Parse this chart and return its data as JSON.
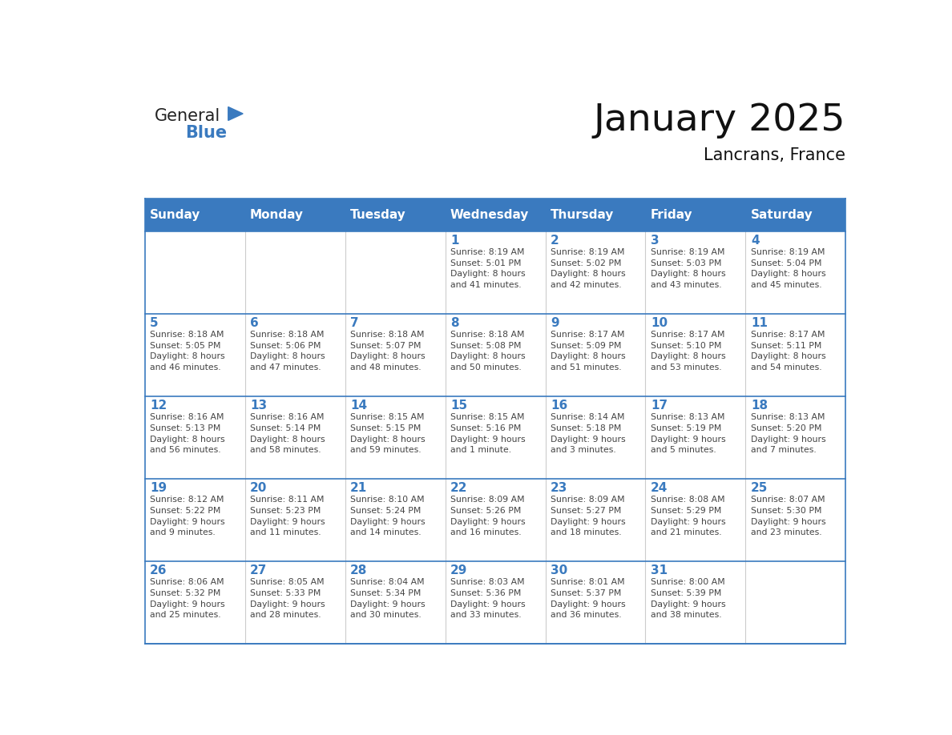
{
  "title": "January 2025",
  "subtitle": "Lancrans, France",
  "header_bg_color": "#3a7abf",
  "header_text_color": "#ffffff",
  "cell_border_color": "#3a7abf",
  "day_number_color": "#3a7abf",
  "text_color": "#444444",
  "days_of_week": [
    "Sunday",
    "Monday",
    "Tuesday",
    "Wednesday",
    "Thursday",
    "Friday",
    "Saturday"
  ],
  "calendar": [
    [
      {
        "day": "",
        "info": ""
      },
      {
        "day": "",
        "info": ""
      },
      {
        "day": "",
        "info": ""
      },
      {
        "day": "1",
        "info": "Sunrise: 8:19 AM\nSunset: 5:01 PM\nDaylight: 8 hours\nand 41 minutes."
      },
      {
        "day": "2",
        "info": "Sunrise: 8:19 AM\nSunset: 5:02 PM\nDaylight: 8 hours\nand 42 minutes."
      },
      {
        "day": "3",
        "info": "Sunrise: 8:19 AM\nSunset: 5:03 PM\nDaylight: 8 hours\nand 43 minutes."
      },
      {
        "day": "4",
        "info": "Sunrise: 8:19 AM\nSunset: 5:04 PM\nDaylight: 8 hours\nand 45 minutes."
      }
    ],
    [
      {
        "day": "5",
        "info": "Sunrise: 8:18 AM\nSunset: 5:05 PM\nDaylight: 8 hours\nand 46 minutes."
      },
      {
        "day": "6",
        "info": "Sunrise: 8:18 AM\nSunset: 5:06 PM\nDaylight: 8 hours\nand 47 minutes."
      },
      {
        "day": "7",
        "info": "Sunrise: 8:18 AM\nSunset: 5:07 PM\nDaylight: 8 hours\nand 48 minutes."
      },
      {
        "day": "8",
        "info": "Sunrise: 8:18 AM\nSunset: 5:08 PM\nDaylight: 8 hours\nand 50 minutes."
      },
      {
        "day": "9",
        "info": "Sunrise: 8:17 AM\nSunset: 5:09 PM\nDaylight: 8 hours\nand 51 minutes."
      },
      {
        "day": "10",
        "info": "Sunrise: 8:17 AM\nSunset: 5:10 PM\nDaylight: 8 hours\nand 53 minutes."
      },
      {
        "day": "11",
        "info": "Sunrise: 8:17 AM\nSunset: 5:11 PM\nDaylight: 8 hours\nand 54 minutes."
      }
    ],
    [
      {
        "day": "12",
        "info": "Sunrise: 8:16 AM\nSunset: 5:13 PM\nDaylight: 8 hours\nand 56 minutes."
      },
      {
        "day": "13",
        "info": "Sunrise: 8:16 AM\nSunset: 5:14 PM\nDaylight: 8 hours\nand 58 minutes."
      },
      {
        "day": "14",
        "info": "Sunrise: 8:15 AM\nSunset: 5:15 PM\nDaylight: 8 hours\nand 59 minutes."
      },
      {
        "day": "15",
        "info": "Sunrise: 8:15 AM\nSunset: 5:16 PM\nDaylight: 9 hours\nand 1 minute."
      },
      {
        "day": "16",
        "info": "Sunrise: 8:14 AM\nSunset: 5:18 PM\nDaylight: 9 hours\nand 3 minutes."
      },
      {
        "day": "17",
        "info": "Sunrise: 8:13 AM\nSunset: 5:19 PM\nDaylight: 9 hours\nand 5 minutes."
      },
      {
        "day": "18",
        "info": "Sunrise: 8:13 AM\nSunset: 5:20 PM\nDaylight: 9 hours\nand 7 minutes."
      }
    ],
    [
      {
        "day": "19",
        "info": "Sunrise: 8:12 AM\nSunset: 5:22 PM\nDaylight: 9 hours\nand 9 minutes."
      },
      {
        "day": "20",
        "info": "Sunrise: 8:11 AM\nSunset: 5:23 PM\nDaylight: 9 hours\nand 11 minutes."
      },
      {
        "day": "21",
        "info": "Sunrise: 8:10 AM\nSunset: 5:24 PM\nDaylight: 9 hours\nand 14 minutes."
      },
      {
        "day": "22",
        "info": "Sunrise: 8:09 AM\nSunset: 5:26 PM\nDaylight: 9 hours\nand 16 minutes."
      },
      {
        "day": "23",
        "info": "Sunrise: 8:09 AM\nSunset: 5:27 PM\nDaylight: 9 hours\nand 18 minutes."
      },
      {
        "day": "24",
        "info": "Sunrise: 8:08 AM\nSunset: 5:29 PM\nDaylight: 9 hours\nand 21 minutes."
      },
      {
        "day": "25",
        "info": "Sunrise: 8:07 AM\nSunset: 5:30 PM\nDaylight: 9 hours\nand 23 minutes."
      }
    ],
    [
      {
        "day": "26",
        "info": "Sunrise: 8:06 AM\nSunset: 5:32 PM\nDaylight: 9 hours\nand 25 minutes."
      },
      {
        "day": "27",
        "info": "Sunrise: 8:05 AM\nSunset: 5:33 PM\nDaylight: 9 hours\nand 28 minutes."
      },
      {
        "day": "28",
        "info": "Sunrise: 8:04 AM\nSunset: 5:34 PM\nDaylight: 9 hours\nand 30 minutes."
      },
      {
        "day": "29",
        "info": "Sunrise: 8:03 AM\nSunset: 5:36 PM\nDaylight: 9 hours\nand 33 minutes."
      },
      {
        "day": "30",
        "info": "Sunrise: 8:01 AM\nSunset: 5:37 PM\nDaylight: 9 hours\nand 36 minutes."
      },
      {
        "day": "31",
        "info": "Sunrise: 8:00 AM\nSunset: 5:39 PM\nDaylight: 9 hours\nand 38 minutes."
      },
      {
        "day": "",
        "info": ""
      }
    ]
  ],
  "logo_text_general": "General",
  "logo_text_blue": "Blue",
  "logo_general_color": "#222222",
  "logo_blue_color": "#3a7abf",
  "logo_triangle_color": "#3a7abf",
  "fig_width": 11.88,
  "fig_height": 9.18,
  "dpi": 100
}
